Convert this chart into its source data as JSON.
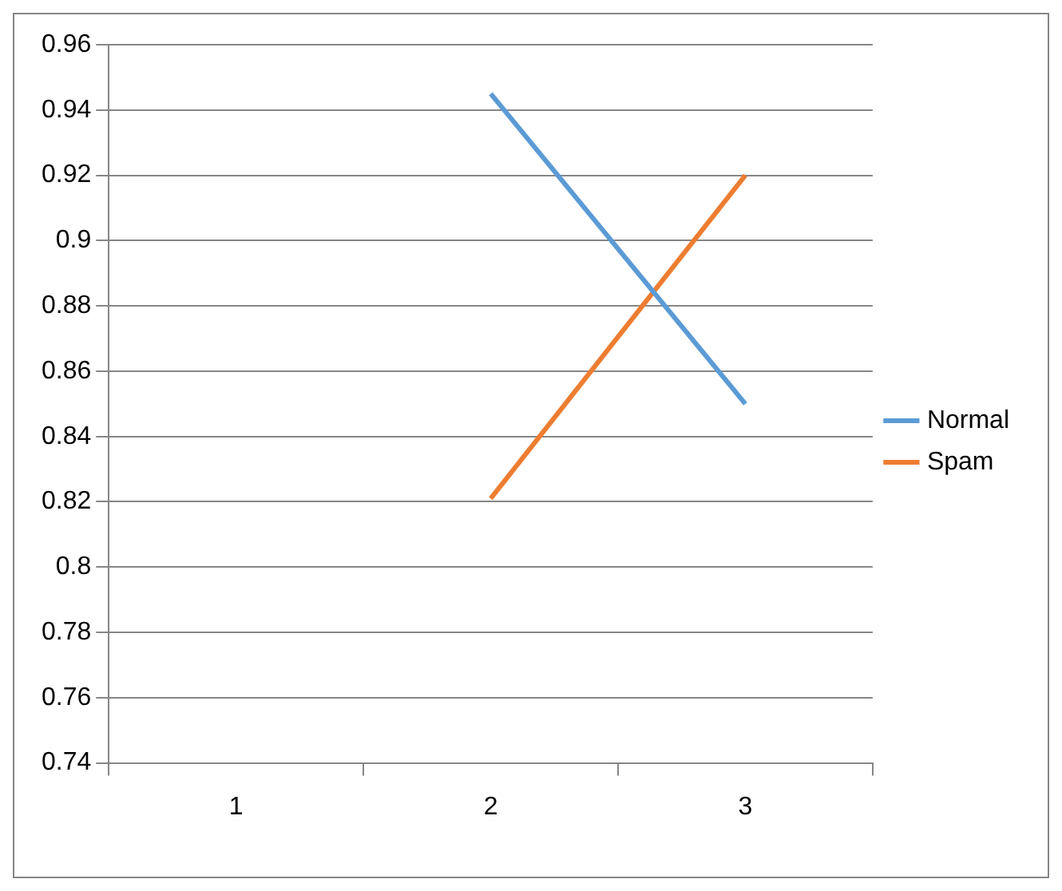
{
  "chart_data": {
    "type": "line",
    "categories": [
      "1",
      "2",
      "3"
    ],
    "series": [
      {
        "name": "Normal",
        "color": "#5b9bd5",
        "values": [
          null,
          0.945,
          0.85
        ]
      },
      {
        "name": "Spam",
        "color": "#ed7d31",
        "values": [
          null,
          0.821,
          0.92
        ]
      }
    ],
    "ylim": [
      0.74,
      0.96
    ],
    "yticks": [
      0.74,
      0.76,
      0.78,
      0.8,
      0.82,
      0.84,
      0.86,
      0.88,
      0.9,
      0.92,
      0.94,
      0.96
    ],
    "grid": "y",
    "legend": "right",
    "marker": "none",
    "line_style": "solid"
  }
}
